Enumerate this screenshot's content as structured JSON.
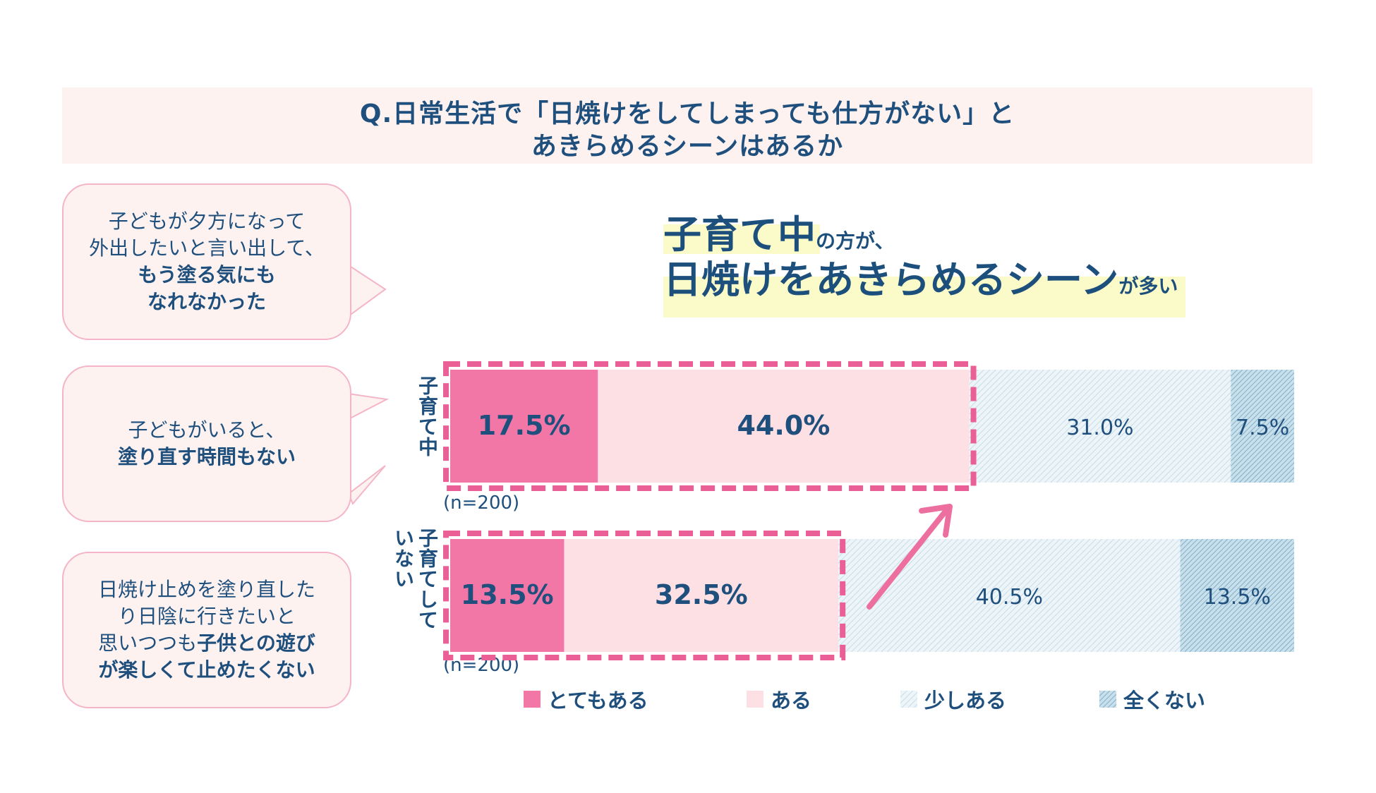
{
  "title": {
    "line1": "Q.日常生活で「日焼けをしてしまっても仕方がない」と",
    "line2": "あきらめるシーンはあるか"
  },
  "bubbles": [
    {
      "normal1": "子どもが夕方になって",
      "normal2": "外出したいと言い出して、",
      "bold1": "もう塗る気にも",
      "bold2": "なれなかった"
    },
    {
      "normal1": "子どもがいると、",
      "bold1": "塗り直す時間もない"
    },
    {
      "normal1": "日焼け止めを塗り直した",
      "normal2": "り日陰に行きたいと",
      "normal3": "思いつつも",
      "bold1": "子供との遊び",
      "bold2": "が楽しくて止めたくない"
    }
  ],
  "headline": {
    "big1": "子育て中",
    "small1": "の方が、",
    "big2": "日焼けをあきらめるシーン",
    "small2": "が多い"
  },
  "colors": {
    "very": "#f277a7",
    "some": "#fde0e3",
    "little": "#dcebf2",
    "none": "#9fc7da",
    "dash": "#ea5f95",
    "arrow": "#ec6fa0",
    "text_dark": "#1f4f7d"
  },
  "chart_data": {
    "type": "bar",
    "orientation": "horizontal-stacked-100",
    "categories": [
      "子育て中",
      "子育てしていない"
    ],
    "category_labels_display": [
      "子育て中",
      "子育てしていない"
    ],
    "sample_labels": [
      "(n=200)",
      "(n=200)"
    ],
    "series": [
      {
        "name": "とてもある",
        "values": [
          17.5,
          13.5
        ],
        "labels": [
          "17.5%",
          "13.5%"
        ]
      },
      {
        "name": "ある",
        "values": [
          44.0,
          32.5
        ],
        "labels": [
          "44.0%",
          "32.5%"
        ]
      },
      {
        "name": "少しある",
        "values": [
          31.0,
          40.5
        ],
        "labels": [
          "31.0%",
          "40.5%"
        ]
      },
      {
        "name": "全くない",
        "values": [
          7.5,
          13.5
        ],
        "labels": [
          "7.5%",
          "13.5%"
        ]
      }
    ],
    "xlim": [
      0,
      100
    ],
    "highlight": "dashed box around とてもある + ある for each group",
    "legend_position": "bottom"
  }
}
